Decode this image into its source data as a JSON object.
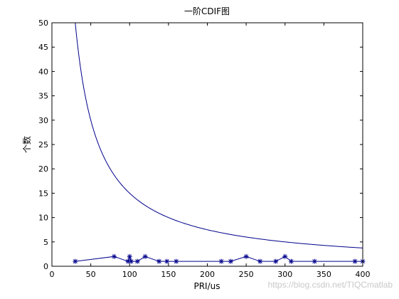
{
  "chart_data": {
    "type": "line",
    "title": "一阶CDIF图",
    "xlabel": "PRI/us",
    "ylabel": "个数",
    "xlim": [
      0,
      400
    ],
    "ylim": [
      0,
      50
    ],
    "x_ticks": [
      0,
      50,
      100,
      150,
      200,
      250,
      300,
      350,
      400
    ],
    "y_ticks": [
      0,
      5,
      10,
      15,
      20,
      25,
      30,
      35,
      40,
      45,
      50
    ],
    "grid": false,
    "series": [
      {
        "style": "curve",
        "color": "#00008b",
        "formula": "y = 1500 / x",
        "x_range": [
          30,
          400
        ]
      },
      {
        "style": "line-star",
        "color": "#00008b",
        "x": [
          30,
          80,
          98,
          100,
          102,
          110,
          120,
          138,
          148,
          160,
          218,
          230,
          250,
          268,
          288,
          300,
          308,
          338,
          390,
          400
        ],
        "y": [
          1,
          2,
          1,
          2,
          1,
          1,
          2,
          1,
          1,
          1,
          1,
          1,
          2,
          1,
          1,
          2,
          1,
          1,
          1,
          1
        ]
      }
    ]
  },
  "watermark": "https://blog.csdn.net/TIQCmatlab"
}
